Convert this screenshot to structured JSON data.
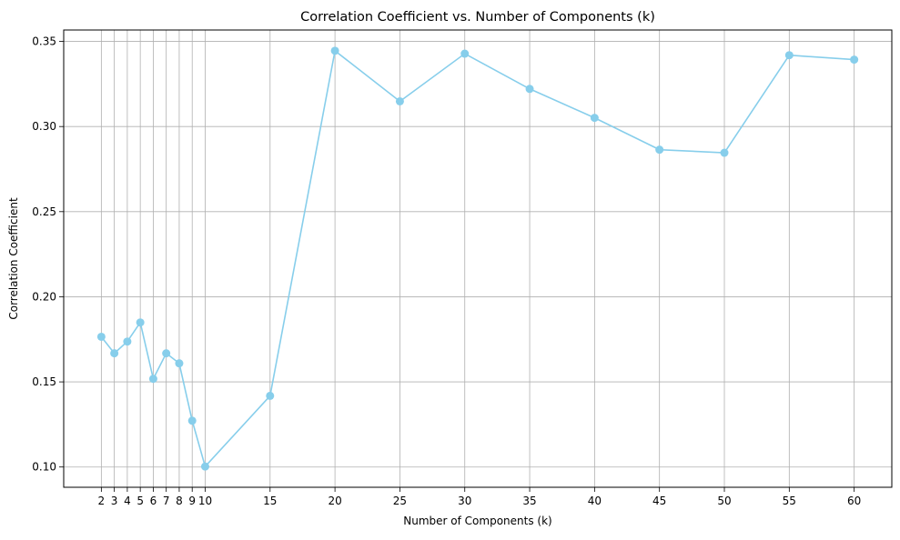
{
  "chart_data": {
    "type": "line",
    "title": "Correlation Coefficient vs. Number of Components (k)",
    "xlabel": "Number of Components (k)",
    "ylabel": "Correlation Coefficient",
    "x": [
      2,
      3,
      4,
      5,
      6,
      7,
      8,
      9,
      10,
      15,
      20,
      25,
      30,
      35,
      40,
      45,
      50,
      55,
      60
    ],
    "series": [
      {
        "values": [
          0.1765,
          0.1668,
          0.1737,
          0.1849,
          0.1518,
          0.1668,
          0.1609,
          0.1272,
          0.1003,
          0.1418,
          0.3445,
          0.3148,
          0.3428,
          0.3221,
          0.3051,
          0.2864,
          0.2846,
          0.3419,
          0.3393
        ],
        "color": "#87ceeb"
      }
    ],
    "xticks": [
      2,
      3,
      4,
      5,
      6,
      7,
      8,
      9,
      10,
      15,
      20,
      25,
      30,
      35,
      40,
      45,
      50,
      55,
      60
    ],
    "yticks": [
      0.1,
      0.15,
      0.2,
      0.25,
      0.3,
      0.35
    ],
    "ytick_labels": [
      "0.10",
      "0.15",
      "0.20",
      "0.25",
      "0.30",
      "0.35"
    ],
    "xlim": [
      -0.9,
      62.9
    ],
    "ylim": [
      0.0881,
      0.3567
    ],
    "grid": true,
    "grid_color": "#b0b0b0",
    "marker": "circle"
  }
}
